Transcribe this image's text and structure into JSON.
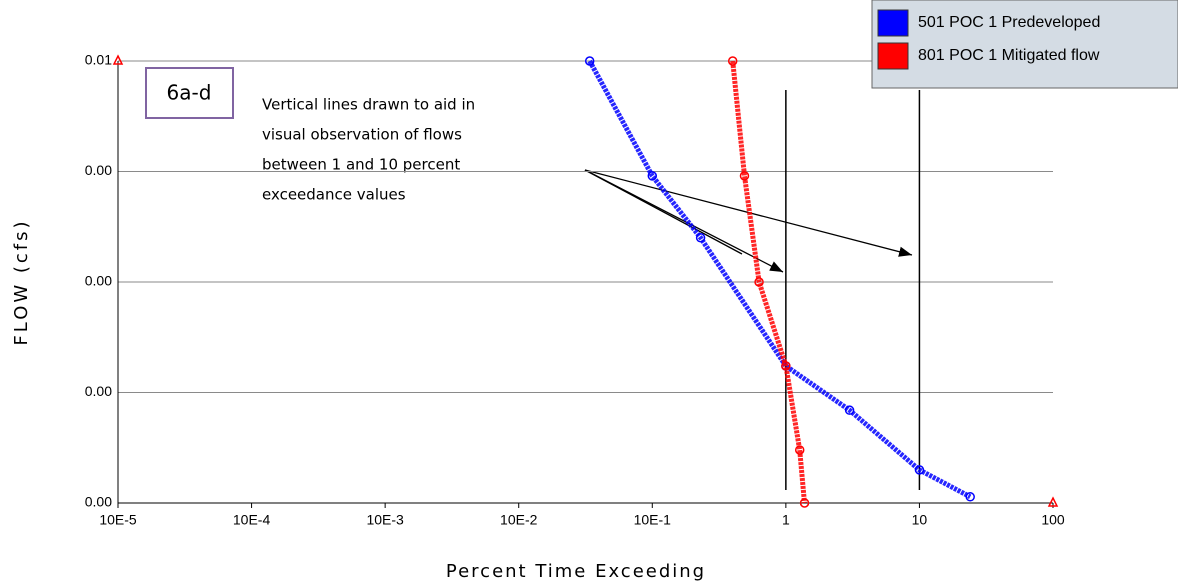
{
  "chart_data": {
    "type": "line",
    "xlabel": "Percent Time Exceeding",
    "ylabel": "FLOW (cfs)",
    "xscale": "log",
    "xlim": [
      1e-05,
      100
    ],
    "ylim": [
      0,
      0.01
    ],
    "xticks": [
      {
        "value": 1e-05,
        "label": "10E-5"
      },
      {
        "value": 0.0001,
        "label": "10E-4"
      },
      {
        "value": 0.001,
        "label": "10E-3"
      },
      {
        "value": 0.01,
        "label": "10E-2"
      },
      {
        "value": 0.1,
        "label": "10E-1"
      },
      1,
      10,
      100
    ],
    "yticks": [
      {
        "value": 0,
        "label": "0.00"
      },
      {
        "value": 0.0025,
        "label": "0.00"
      },
      {
        "value": 0.005,
        "label": "0.00"
      },
      {
        "value": 0.0075,
        "label": "0.00"
      },
      {
        "value": 0.01,
        "label": "0.01"
      }
    ],
    "grid": true,
    "legend": "top-right",
    "series": [
      {
        "name": "501 POC 1 Predeveloped",
        "color": "#0000ff",
        "x": [
          0.034,
          0.1,
          0.23,
          1,
          3,
          10,
          24
        ],
        "values": [
          0.01,
          0.0074,
          0.006,
          0.0031,
          0.0021,
          0.00075,
          0.00014
        ]
      },
      {
        "name": "801 POC 1 Mitigated flow",
        "color": "#ff0000",
        "x": [
          0.4,
          0.49,
          0.63,
          1,
          1.27,
          1.38
        ],
        "values": [
          0.01,
          0.0074,
          0.005,
          0.0031,
          0.0012,
          0
        ]
      }
    ],
    "endpoints": {
      "x": [
        1e-05,
        100
      ],
      "values": [
        0.01,
        0
      ]
    },
    "vlines": [
      1,
      10
    ],
    "box_label": "6a-d",
    "annotation": [
      "Vertical lines drawn to aid in",
      "visual observation of flows",
      "between 1 and 10 percent",
      "exceedance values"
    ]
  }
}
